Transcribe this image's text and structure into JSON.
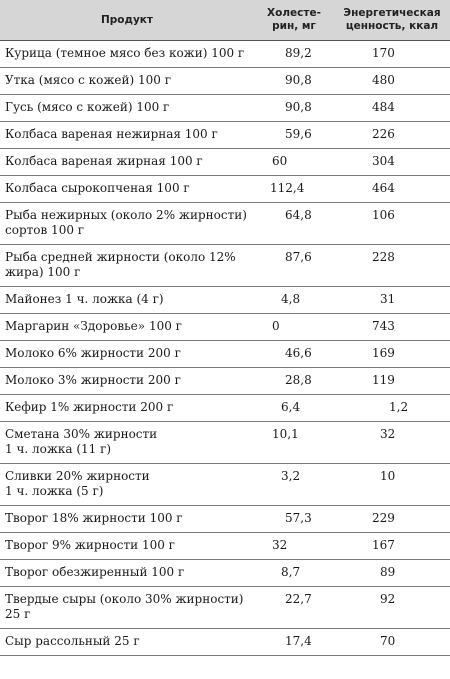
{
  "table": {
    "headers": {
      "product": "Продукт",
      "cholesterol": "Холесте-\nрин, мг",
      "energy": "Энергетическая\nценность, ккал"
    },
    "rows": [
      {
        "product": "Курица (темное мясо без кожи) 100 г",
        "cholesterol": "89,2",
        "energy": "170"
      },
      {
        "product": "Утка (мясо с кожей) 100 г",
        "cholesterol": "90,8",
        "energy": "480"
      },
      {
        "product": "Гусь (мясо с кожей) 100 г",
        "cholesterol": "90,8",
        "energy": "484"
      },
      {
        "product": "Колбаса вареная нежирная 100 г",
        "cholesterol": "59,6",
        "energy": "226"
      },
      {
        "product": "Колбаса вареная жирная 100 г",
        "cholesterol": "60",
        "energy": "304"
      },
      {
        "product": "Колбаса сырокопченая 100 г",
        "cholesterol": "112,4",
        "energy": "464"
      },
      {
        "product": "Рыба нежирных (около 2% жирности) сортов 100 г",
        "cholesterol": "64,8",
        "energy": "106"
      },
      {
        "product": "Рыба средней жирности (около 12% жира) 100 г",
        "cholesterol": "87,6",
        "energy": "228"
      },
      {
        "product": "Майонез 1 ч. ложка (4 г)",
        "cholesterol": "4,8",
        "energy": "31"
      },
      {
        "product": "Маргарин «Здоровье» 100 г",
        "cholesterol": "0",
        "energy": "743"
      },
      {
        "product": "Молоко 6% жирности 200 г",
        "cholesterol": "46,6",
        "energy": "169"
      },
      {
        "product": "Молоко 3% жирности 200 г",
        "cholesterol": "28,8",
        "energy": "119"
      },
      {
        "product": "Кефир 1% жирности 200 г",
        "cholesterol": "6,4",
        "energy": "1,2"
      },
      {
        "product": "Сметана 30% жирности\n1 ч. ложка  (11 г)",
        "cholesterol": "10,1",
        "energy": "32"
      },
      {
        "product": "Сливки 20% жирности\n1 ч. ложка  (5 г)",
        "cholesterol": "3,2",
        "energy": "10"
      },
      {
        "product": "Творог 18% жирности 100 г",
        "cholesterol": "57,3",
        "energy": "229"
      },
      {
        "product": "Творог 9% жирности 100 г",
        "cholesterol": "32",
        "energy": "167"
      },
      {
        "product": "Творог обезжиренный 100 г",
        "cholesterol": "8,7",
        "energy": "89"
      },
      {
        "product": "Твердые сыры (около 30% жирности) 25 г",
        "cholesterol": "22,7",
        "energy": "92"
      },
      {
        "product": "Сыр рассольный 25 г",
        "cholesterol": "17,4",
        "energy": "70"
      }
    ]
  }
}
